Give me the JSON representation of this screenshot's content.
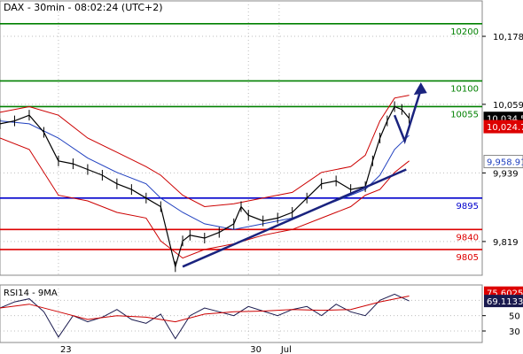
{
  "header": {
    "title": "DAX - 30min - 08:02:24 (UTC+2)"
  },
  "colors": {
    "price": "#000000",
    "bollinger": "#cc0000",
    "moving_average": "#1f3fbf",
    "support_green": "#008000",
    "support_red": "#dd0000",
    "support_blue": "#0000cc",
    "trendline": "#1a237e",
    "rsi": "#1a1a4e",
    "rsi_ma": "#cc0000",
    "grid": "#bdbdbd"
  },
  "chart_data": [
    {
      "type": "line",
      "title": "DAX - 30min - 08:02:24 (UTC+2)",
      "ylim": [
        9760,
        10240
      ],
      "x_range": [
        0,
        330
      ],
      "price_ticks": [
        "10,178",
        "10,059",
        "9,939",
        "9,819"
      ],
      "price_tick_values": [
        10178,
        10059,
        9939,
        9819
      ],
      "x_labels": [
        {
          "label": "23",
          "x": 40
        },
        {
          "label": "30",
          "x": 170
        },
        {
          "label": "Jul",
          "x": 191
        }
      ],
      "levels": [
        {
          "label": "10200",
          "value": 10200,
          "color": "#008000"
        },
        {
          "label": "10100",
          "value": 10100,
          "color": "#008000"
        },
        {
          "label": "10055",
          "value": 10055,
          "color": "#008000"
        },
        {
          "label": "9895",
          "value": 9895,
          "color": "#0000cc"
        },
        {
          "label": "9840",
          "value": 9840,
          "color": "#dd0000"
        },
        {
          "label": "9805",
          "value": 9805,
          "color": "#dd0000"
        }
      ],
      "price_markers": [
        {
          "label": "10,034.5",
          "value": 10034.5,
          "bg": "#000000",
          "fg": "#ffffff"
        },
        {
          "label": "10,024.7",
          "value": 10020,
          "bg": "#dd0000",
          "fg": "#ffffff"
        },
        {
          "label": "9,958.91",
          "value": 9958.91,
          "bg": "#ffffff",
          "fg": "#1f3fbf"
        }
      ],
      "series": [
        {
          "kind": "price",
          "x": [
            0,
            10,
            20,
            30,
            40,
            50,
            60,
            70,
            80,
            90,
            100,
            110,
            120,
            125,
            130,
            140,
            150,
            160,
            165,
            170,
            180,
            190,
            200,
            210,
            220,
            230,
            240,
            250,
            255,
            260,
            265,
            270,
            275,
            280
          ],
          "values": [
            10025,
            10030,
            10040,
            10010,
            9960,
            9955,
            9945,
            9935,
            9920,
            9910,
            9895,
            9880,
            9775,
            9820,
            9830,
            9825,
            9835,
            9850,
            9880,
            9865,
            9855,
            9860,
            9870,
            9895,
            9920,
            9925,
            9910,
            9915,
            9960,
            10000,
            10030,
            10055,
            10050,
            10034.5
          ]
        },
        {
          "kind": "bollinger-upper",
          "x": [
            0,
            20,
            40,
            60,
            80,
            100,
            110,
            125,
            140,
            160,
            180,
            200,
            220,
            240,
            250,
            260,
            270,
            280
          ],
          "values": [
            10045,
            10055,
            10040,
            10000,
            9975,
            9950,
            9935,
            9900,
            9880,
            9885,
            9895,
            9905,
            9940,
            9950,
            9970,
            10030,
            10070,
            10075
          ]
        },
        {
          "kind": "bollinger-lower",
          "x": [
            0,
            20,
            40,
            60,
            80,
            100,
            110,
            125,
            140,
            160,
            180,
            200,
            220,
            240,
            250,
            260,
            270,
            280
          ],
          "values": [
            10000,
            9980,
            9900,
            9890,
            9870,
            9860,
            9820,
            9790,
            9805,
            9815,
            9830,
            9840,
            9860,
            9880,
            9900,
            9910,
            9940,
            9960
          ]
        },
        {
          "kind": "moving-average",
          "x": [
            0,
            20,
            40,
            60,
            80,
            100,
            110,
            125,
            140,
            160,
            180,
            200,
            220,
            240,
            250,
            260,
            270,
            280
          ],
          "values": [
            10030,
            10025,
            10000,
            9965,
            9940,
            9920,
            9895,
            9870,
            9850,
            9840,
            9850,
            9860,
            9880,
            9900,
            9910,
            9935,
            9980,
            10005
          ]
        }
      ],
      "trendlines": [
        {
          "x": [
            125,
            278
          ],
          "values": [
            9775,
            9945
          ],
          "color": "#1a237e"
        }
      ],
      "forecast_arrow": {
        "x": [
          270,
          277,
          288
        ],
        "values": [
          10040,
          9995,
          10085
        ]
      }
    },
    {
      "type": "line",
      "title": "RSI14 - 9MA",
      "ylim": [
        15,
        90
      ],
      "rsi_ticks": [
        "50",
        "30"
      ],
      "rsi_tick_values": [
        50,
        30
      ],
      "rsi_gridlines": [
        70,
        50,
        30
      ],
      "value_markers": [
        {
          "label": "75.6025",
          "value": 80,
          "bg": "#dd0000",
          "fg": "#ffffff"
        },
        {
          "label": "69.1133",
          "value": 69.1133,
          "bg": "#1a1a4e",
          "fg": "#ffffff"
        }
      ],
      "series": [
        {
          "kind": "rsi",
          "x": [
            0,
            10,
            20,
            30,
            40,
            50,
            60,
            70,
            80,
            90,
            100,
            110,
            120,
            130,
            140,
            150,
            160,
            170,
            180,
            190,
            200,
            210,
            220,
            230,
            240,
            250,
            260,
            270,
            280
          ],
          "values": [
            60,
            68,
            72,
            55,
            22,
            50,
            42,
            48,
            58,
            45,
            40,
            52,
            20,
            50,
            60,
            55,
            50,
            62,
            56,
            50,
            58,
            62,
            50,
            65,
            55,
            50,
            70,
            78,
            69.1
          ]
        },
        {
          "kind": "rsi-ma",
          "x": [
            0,
            20,
            40,
            60,
            80,
            100,
            120,
            140,
            160,
            180,
            200,
            220,
            240,
            260,
            280
          ],
          "values": [
            60,
            65,
            55,
            45,
            50,
            48,
            42,
            52,
            55,
            56,
            58,
            57,
            58,
            68,
            75.6
          ]
        }
      ]
    }
  ]
}
